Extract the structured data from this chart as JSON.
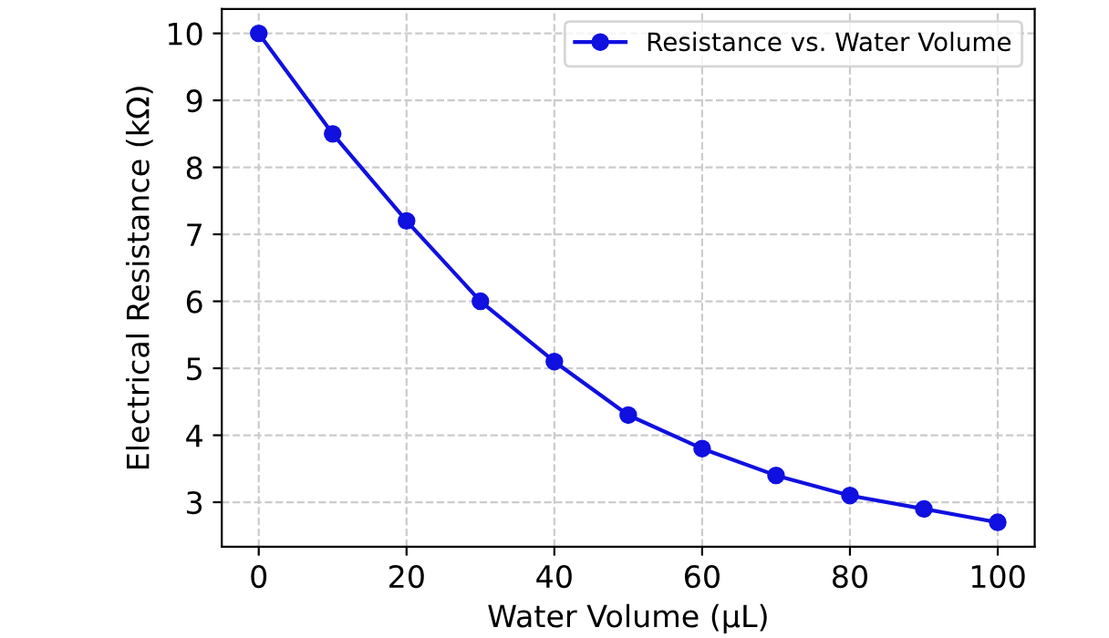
{
  "chart_data": {
    "type": "line",
    "xlabel": "Water Volume (µL)",
    "ylabel": "Electrical Resistance (kΩ)",
    "x": [
      0,
      10,
      20,
      30,
      40,
      50,
      60,
      70,
      80,
      90,
      100
    ],
    "series": [
      {
        "name": "Resistance vs. Water Volume",
        "color": "#1010e0",
        "values": [
          10,
          8.5,
          7.2,
          6.0,
          5.1,
          4.3,
          3.8,
          3.4,
          3.1,
          2.9,
          2.7
        ]
      }
    ],
    "xlim": [
      -5,
      105
    ],
    "ylim": [
      2.335,
      10.365
    ],
    "xticks": [
      0,
      20,
      40,
      60,
      80,
      100
    ],
    "yticks": [
      3,
      4,
      5,
      6,
      7,
      8,
      9,
      10
    ],
    "grid": true,
    "legend": "top right",
    "marker": "circle",
    "line_style": "solid"
  }
}
